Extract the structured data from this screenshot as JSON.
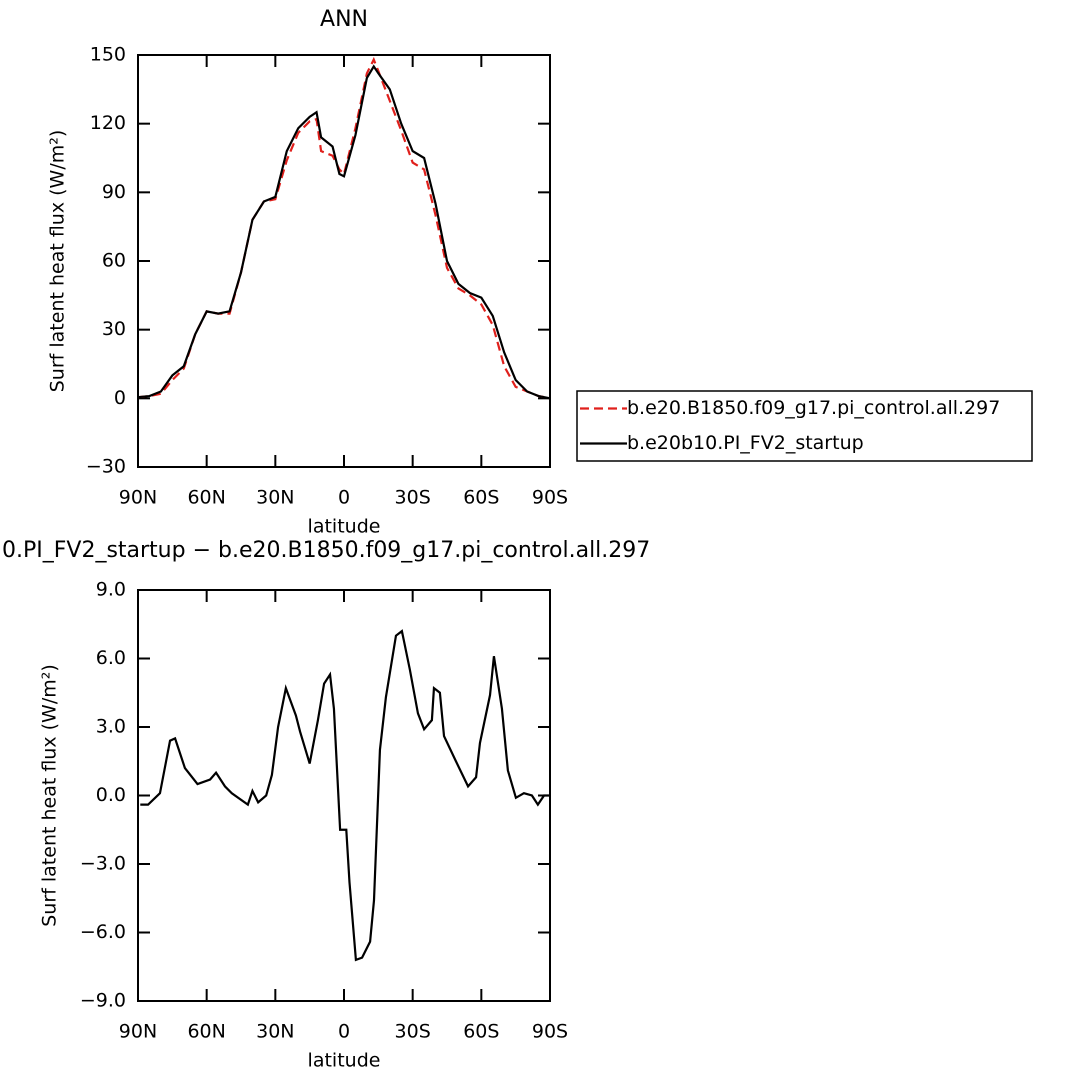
{
  "chart_data": [
    {
      "type": "line",
      "title": "ANN",
      "xlabel": "latitude",
      "ylabel": "Surf latent heat flux (W/m²)",
      "x": [
        90,
        85,
        80,
        75,
        70,
        65,
        60,
        55,
        50,
        45,
        40,
        35,
        30,
        25,
        20,
        15,
        12,
        10,
        5,
        2,
        0,
        -5,
        -10,
        -13,
        -15,
        -20,
        -25,
        -30,
        -35,
        -40,
        -45,
        -50,
        -55,
        -60,
        -65,
        -70,
        -75,
        -80,
        -85,
        -90
      ],
      "series": [
        {
          "name": "b.e20.B1850.f09_g17.pi_control.all.297",
          "color": "#e0201c",
          "dash": true,
          "values": [
            0.5,
            1,
            2,
            8,
            13,
            28,
            38,
            37,
            37,
            55,
            78,
            86,
            87,
            104,
            116,
            121,
            122,
            108,
            106,
            100,
            98,
            118,
            142,
            148,
            143,
            130,
            117,
            103,
            100,
            80,
            57,
            48,
            45,
            41,
            32,
            14,
            5,
            3,
            1,
            0
          ]
        },
        {
          "name": "b.e20b10.PI_FV2_startup",
          "color": "#000000",
          "dash": false,
          "values": [
            0.5,
            1,
            3,
            10,
            14,
            28,
            38,
            37,
            38,
            55,
            78,
            86,
            88,
            108,
            118,
            123,
            125,
            114,
            110,
            98,
            97,
            115,
            140,
            145,
            142,
            135,
            120,
            108,
            105,
            85,
            60,
            50,
            46,
            44,
            36,
            20,
            8,
            3,
            1,
            0
          ]
        }
      ],
      "xlim": [
        90,
        -90
      ],
      "xticks": [
        {
          "value": 90,
          "label": "90N"
        },
        {
          "value": 60,
          "label": "60N"
        },
        {
          "value": 30,
          "label": "30N"
        },
        0,
        {
          "value": -30,
          "label": "30S"
        },
        {
          "value": -60,
          "label": "60S"
        },
        {
          "value": -90,
          "label": "90S"
        }
      ],
      "ylim": [
        -30,
        150
      ],
      "yticks": [
        {
          "value": -30,
          "label": "−30"
        },
        0,
        30,
        60,
        90,
        120,
        150
      ],
      "legend": "right"
    },
    {
      "type": "line",
      "title": "0.PI_FV2_startup − b.e20.B1850.f09_g17.pi_control.all.297",
      "xlabel": "latitude",
      "ylabel": "Surf latent heat flux (W/m²)",
      "x": [
        89,
        85.6,
        80.4,
        76,
        73.8,
        69.5,
        64,
        58.5,
        55.9,
        52,
        49,
        42,
        40,
        37.5,
        34,
        31.5,
        28.8,
        25.4,
        21,
        19.2,
        15,
        11.4,
        8.7,
        6.1,
        4.4,
        1.7,
        -1,
        -2.4,
        -5.2,
        -7.9,
        -11.4,
        -13.1,
        -15.7,
        -18.3,
        -22.7,
        -25.3,
        -28.8,
        -32.3,
        -35,
        -38.4,
        -39.3,
        -41.9,
        -43.7,
        -48.9,
        -54.2,
        -57.7,
        -59.4,
        -63.8,
        -65.5,
        -69,
        -71.6,
        -75.1,
        -78.6,
        -82.1,
        -84.7,
        -87.4,
        -90
      ],
      "values": [
        -0.4,
        -0.4,
        0.1,
        2.4,
        2.5,
        1.2,
        0.5,
        0.7,
        1,
        0.4,
        0.1,
        -0.4,
        0.2,
        -0.3,
        0,
        0.9,
        3,
        4.7,
        3.5,
        2.8,
        1.4,
        3.3,
        4.9,
        5.3,
        3.8,
        -1.5,
        -1.5,
        -3.8,
        -7.2,
        -7.1,
        -6.4,
        -4.6,
        2.0,
        4.3,
        7.0,
        7.2,
        5.5,
        3.6,
        2.9,
        3.3,
        4.7,
        4.5,
        2.6,
        1.5,
        0.4,
        0.8,
        2.3,
        4.4,
        6.1,
        3.8,
        1.1,
        -0.1,
        0.1,
        0,
        -0.4,
        0,
        0
      ],
      "color": "#000000",
      "xlim": [
        90,
        -90
      ],
      "xticks": [
        {
          "value": 90,
          "label": "90N"
        },
        {
          "value": 60,
          "label": "60N"
        },
        {
          "value": 30,
          "label": "30N"
        },
        0,
        {
          "value": -30,
          "label": "30S"
        },
        {
          "value": -60,
          "label": "60S"
        },
        {
          "value": -90,
          "label": "90S"
        }
      ],
      "ylim": [
        -9,
        9
      ],
      "yticks": [
        {
          "value": -9,
          "label": "−9.0"
        },
        {
          "value": -6,
          "label": "−6.0"
        },
        {
          "value": -3,
          "label": "−3.0"
        },
        {
          "value": 0,
          "label": "0.0"
        },
        {
          "value": 3,
          "label": "3.0"
        },
        {
          "value": 6,
          "label": "6.0"
        },
        {
          "value": 9,
          "label": "9.0"
        }
      ]
    }
  ]
}
